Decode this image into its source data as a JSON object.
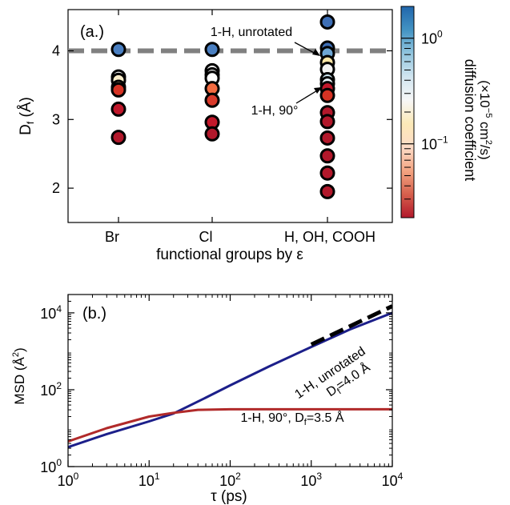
{
  "chart_data": [
    {
      "type": "scatter",
      "panel_label": "(a.)",
      "xlabel": "functional groups by ε",
      "ylabel": "D",
      "ylabel_sub": "f",
      "ylabel_unit": " (Å)",
      "categories": [
        "Br",
        "Cl",
        "H, OH, COOH"
      ],
      "ylim": [
        1.5,
        4.6
      ],
      "yticks": [
        2,
        3,
        4
      ],
      "grid": false,
      "reference_line": {
        "y": 4.0,
        "style": "dashed",
        "color": "#808080"
      },
      "series": [
        {
          "category": "Br",
          "points": [
            {
              "y": 4.02,
              "color": "#4a7fc1"
            },
            {
              "y": 3.62,
              "color": "#f3f3f3"
            },
            {
              "y": 3.57,
              "color": "#fbeecb"
            },
            {
              "y": 3.47,
              "color": "#fbe2a2"
            },
            {
              "y": 3.43,
              "color": "#d63324"
            },
            {
              "y": 3.15,
              "color": "#c0182b"
            },
            {
              "y": 2.74,
              "color": "#b2182b"
            }
          ]
        },
        {
          "category": "Cl",
          "points": [
            {
              "y": 4.02,
              "color": "#4a7fc1"
            },
            {
              "y": 3.71,
              "color": "#f3f3f3"
            },
            {
              "y": 3.65,
              "color": "#f3f3f3"
            },
            {
              "y": 3.6,
              "color": "#ffffff"
            },
            {
              "y": 3.45,
              "color": "#f26b41"
            },
            {
              "y": 3.28,
              "color": "#d93a2b"
            },
            {
              "y": 2.96,
              "color": "#c2182b"
            },
            {
              "y": 2.79,
              "color": "#b2182b"
            }
          ]
        },
        {
          "category": "H, OH, COOH",
          "points": [
            {
              "y": 4.42,
              "color": "#3e6fb6"
            },
            {
              "y": 4.04,
              "color": "#3e6fb6"
            },
            {
              "y": 3.96,
              "color": "#6ea6d3"
            },
            {
              "y": 3.83,
              "color": "#fbe6a6"
            },
            {
              "y": 3.73,
              "color": "#f3f3f3"
            },
            {
              "y": 3.58,
              "color": "#cfe8f2"
            },
            {
              "y": 3.52,
              "color": "#e8f3f8"
            },
            {
              "y": 3.45,
              "color": "#c2182b"
            },
            {
              "y": 3.35,
              "color": "#d63324"
            },
            {
              "y": 3.1,
              "color": "#b2182b"
            },
            {
              "y": 2.97,
              "color": "#b2182b"
            },
            {
              "y": 2.73,
              "color": "#b2182b"
            },
            {
              "y": 2.47,
              "color": "#b2182b"
            },
            {
              "y": 2.22,
              "color": "#b2182b"
            },
            {
              "y": 1.95,
              "color": "#b2182b"
            }
          ]
        }
      ],
      "annotations": [
        {
          "text": "1-H, unrotated",
          "target_category": "H, OH, COOH",
          "target_y": 4.04
        },
        {
          "text": "1-H, 90°",
          "target_category": "H, OH, COOH",
          "target_y": 3.45
        }
      ],
      "colorbar": {
        "label": "diffusion coefficient",
        "units_prefix": "(×10",
        "units_exp": "−5",
        "units_mid": " cm",
        "units_exp2": "2",
        "units_suffix": "/s)",
        "scale": "log",
        "range": [
          0.02,
          2.0
        ],
        "ticks": [
          {
            "value": 1,
            "base": "10",
            "exp": "0"
          },
          {
            "value": 0.1,
            "base": "10",
            "exp": "−1"
          }
        ],
        "colors_low_to_high": [
          "#b2182b",
          "#d6604d",
          "#f4a582",
          "#fddbc7",
          "#fbe9b7",
          "#f7f7f7",
          "#d1e5f0",
          "#92c5de",
          "#4393c3",
          "#2166ac"
        ]
      }
    },
    {
      "type": "line",
      "panel_label": "(b.)",
      "xscale": "log",
      "yscale": "log",
      "xlim": [
        1,
        10000
      ],
      "ylim": [
        1,
        30000
      ],
      "xlabel": "τ (ps)",
      "ylabel": "MSD (Å",
      "ylabel_exp": "2",
      "ylabel_end": ")",
      "xticks": [
        {
          "value": 1,
          "base": "10",
          "exp": "0"
        },
        {
          "value": 10,
          "base": "10",
          "exp": "1"
        },
        {
          "value": 100,
          "base": "10",
          "exp": "2"
        },
        {
          "value": 1000,
          "base": "10",
          "exp": "3"
        },
        {
          "value": 10000,
          "base": "10",
          "exp": "4"
        }
      ],
      "yticks": [
        {
          "value": 1,
          "base": "10",
          "exp": "0"
        },
        {
          "value": 100,
          "base": "10",
          "exp": "2"
        },
        {
          "value": 10000,
          "base": "10",
          "exp": "4"
        }
      ],
      "series": [
        {
          "label_main": "1-H, unrotated",
          "label_sub_pre": "D",
          "label_sub": "f",
          "label_sub_post": "=4.0 Å",
          "color": "#1c1f8a",
          "points": [
            [
              1,
              3.2
            ],
            [
              3,
              7
            ],
            [
              10,
              15
            ],
            [
              20,
              24
            ],
            [
              50,
              62
            ],
            [
              100,
              130
            ],
            [
              300,
              400
            ],
            [
              1000,
              1300
            ],
            [
              3000,
              3700
            ],
            [
              10000,
              10000
            ]
          ]
        },
        {
          "label_main": "1-H, 90°, D",
          "label_sub": "f",
          "label_post": "=3.5 Å",
          "color": "#b12a2a",
          "points": [
            [
              1,
              4.5
            ],
            [
              3,
              10
            ],
            [
              10,
              20
            ],
            [
              20,
              25
            ],
            [
              40,
              30
            ],
            [
              100,
              31
            ],
            [
              1000,
              31
            ],
            [
              10000,
              31
            ]
          ]
        }
      ],
      "reference_slope": {
        "style": "dashed",
        "color": "#000000",
        "points": [
          [
            1000,
            1500
          ],
          [
            10000,
            15000
          ]
        ]
      }
    }
  ]
}
